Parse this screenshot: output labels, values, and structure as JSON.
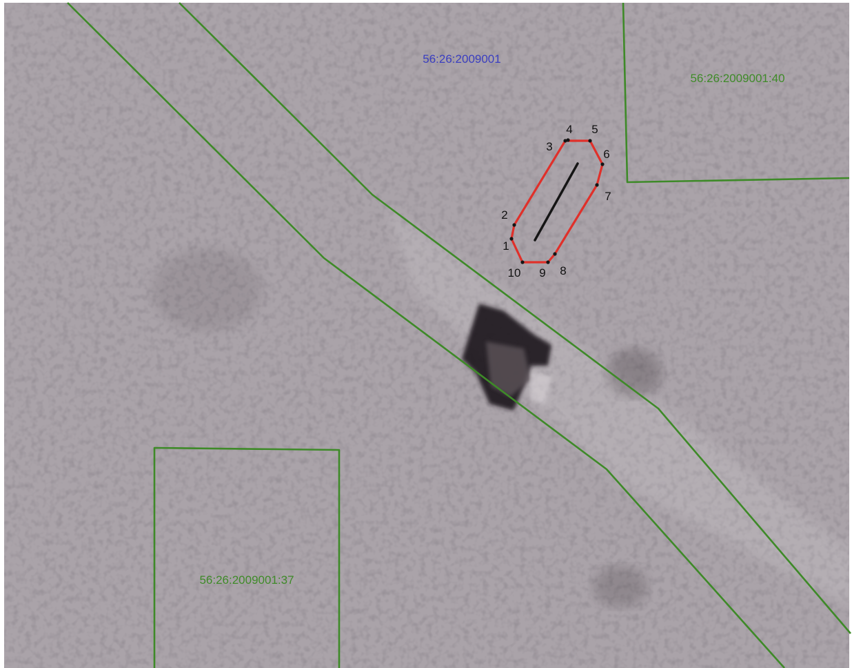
{
  "map": {
    "quarter_label": "56:26:2009001",
    "parcels": [
      {
        "id": "parcel-40",
        "label": "56:26:2009001:40"
      },
      {
        "id": "parcel-37",
        "label": "56:26:2009001:37"
      }
    ],
    "target_points": [
      "1",
      "2",
      "3",
      "4",
      "5",
      "6",
      "7",
      "8",
      "9",
      "10"
    ],
    "colors": {
      "boundary": "#3e8a28",
      "parcel_label": "#3e8a28",
      "quarter_label": "#3a3ec0",
      "target_outline": "#e0302a",
      "point_label": "#111111",
      "imagery_base": "#a9a2a8"
    }
  }
}
